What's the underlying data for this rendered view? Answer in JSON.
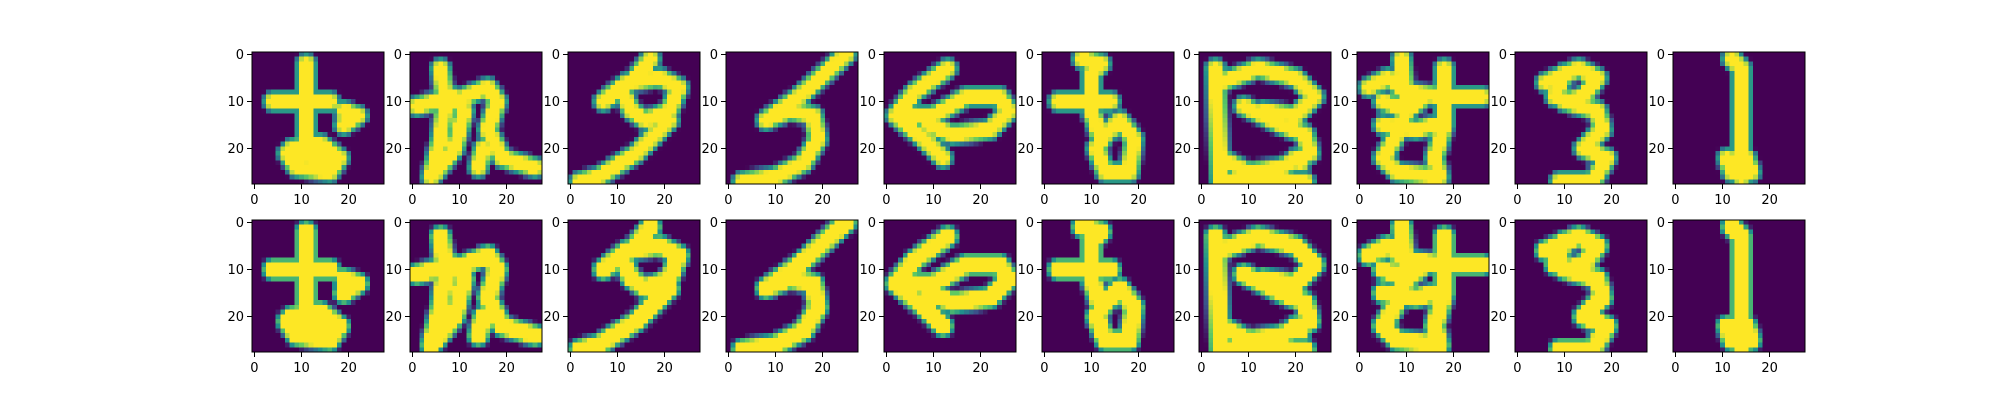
{
  "colors": {
    "background": "#440154",
    "mid": "#21918c",
    "foreground": "#fde725",
    "axis": "#000000"
  },
  "colormap": "viridis",
  "chart_data": {
    "type": "heatmap",
    "description_of_grid": "2 rows x 10 columns of 28x28 grayscale glyph images rendered with the viridis colormap; row 1 and row 2 depict the same ten glyphs",
    "image_shape": [
      28,
      28
    ],
    "rows": 2,
    "cols": 10,
    "x_ticks": [
      "0",
      "10",
      "20"
    ],
    "y_ticks": [
      "0",
      "10",
      "20"
    ],
    "xlim": [
      -0.5,
      27.5
    ],
    "ylim": [
      27.5,
      -0.5
    ],
    "glyphs": [
      {
        "name": "glyph-1",
        "strokes": [
          [
            [
              11,
              2
            ],
            [
              11,
              20
            ],
            [
              14,
              22
            ]
          ],
          [
            [
              4,
              10
            ],
            [
              16,
              10
            ]
          ],
          [
            [
              19,
              12
            ],
            [
              22,
              13
            ],
            [
              19,
              15
            ]
          ],
          [
            [
              8,
              20
            ],
            [
              14,
              19
            ],
            [
              18,
              22
            ],
            [
              16,
              25
            ],
            [
              9,
              24
            ],
            [
              7,
              21
            ],
            [
              8,
              20
            ]
          ],
          [
            [
              10,
              21
            ],
            [
              15,
              22
            ],
            [
              12,
              24
            ]
          ]
        ]
      },
      {
        "name": "glyph-2",
        "strokes": [
          [
            [
              4,
              26
            ],
            [
              6,
              18
            ],
            [
              7,
              10
            ],
            [
              6,
              3
            ]
          ],
          [
            [
              1,
              11
            ],
            [
              9,
              9
            ],
            [
              11,
              12
            ],
            [
              9,
              20
            ],
            [
              5,
              25
            ]
          ],
          [
            [
              11,
              9
            ],
            [
              16,
              7
            ],
            [
              18,
              10
            ],
            [
              16,
              16
            ],
            [
              19,
              22
            ],
            [
              26,
              24
            ]
          ],
          [
            [
              15,
              20
            ],
            [
              14,
              24
            ]
          ]
        ]
      },
      {
        "name": "glyph-3",
        "strokes": [
          [
            [
              17,
              1
            ],
            [
              13,
              6
            ]
          ],
          [
            [
              7,
              10
            ],
            [
              12,
              6
            ],
            [
              19,
              5
            ],
            [
              23,
              7
            ],
            [
              21,
              12
            ],
            [
              16,
              14
            ]
          ],
          [
            [
              11,
              8
            ],
            [
              13,
              12
            ],
            [
              16,
              14
            ]
          ],
          [
            [
              21,
              14
            ],
            [
              14,
              21
            ],
            [
              6,
              26
            ],
            [
              2,
              27
            ]
          ]
        ]
      },
      {
        "name": "glyph-4",
        "strokes": [
          [
            [
              25,
              0
            ],
            [
              15,
              9
            ],
            [
              8,
              14
            ]
          ],
          [
            [
              8,
              14
            ],
            [
              13,
              12
            ],
            [
              18,
              13
            ],
            [
              19,
              18
            ],
            [
              16,
              23
            ],
            [
              10,
              26
            ],
            [
              3,
              27
            ]
          ]
        ]
      },
      {
        "name": "glyph-5",
        "strokes": [
          [
            [
              13,
              3
            ],
            [
              6,
              8
            ],
            [
              2,
              13
            ],
            [
              8,
              18
            ],
            [
              12,
              22
            ]
          ],
          [
            [
              2,
              13
            ],
            [
              10,
              13
            ],
            [
              17,
              9
            ],
            [
              24,
              9
            ],
            [
              26,
              12
            ],
            [
              22,
              16
            ],
            [
              14,
              17
            ],
            [
              9,
              15
            ]
          ]
        ]
      },
      {
        "name": "glyph-6",
        "strokes": [
          [
            [
              8,
              1
            ],
            [
              12,
              2
            ],
            [
              10,
              4
            ],
            [
              10,
              12
            ],
            [
              12,
              18
            ]
          ],
          [
            [
              3,
              10
            ],
            [
              14,
              10
            ]
          ],
          [
            [
              12,
              18
            ],
            [
              16,
              14
            ],
            [
              19,
              18
            ],
            [
              18,
              25
            ],
            [
              13,
              25
            ],
            [
              11,
              20
            ],
            [
              13,
              17
            ]
          ]
        ]
      },
      {
        "name": "glyph-7",
        "strokes": [
          [
            [
              4,
              6
            ],
            [
              12,
              3
            ],
            [
              20,
              5
            ],
            [
              24,
              9
            ],
            [
              20,
              13
            ],
            [
              13,
              12
            ]
          ],
          [
            [
              3,
              3
            ],
            [
              4,
              27
            ],
            [
              22,
              27
            ]
          ],
          [
            [
              9,
              11
            ],
            [
              17,
              15
            ],
            [
              22,
              17
            ],
            [
              23,
              21
            ],
            [
              17,
              24
            ],
            [
              10,
              25
            ],
            [
              4,
              22
            ]
          ],
          [
            [
              20,
              22
            ],
            [
              21,
              23
            ]
          ]
        ]
      },
      {
        "name": "glyph-8",
        "strokes": [
          [
            [
              2,
              7
            ],
            [
              6,
              5
            ],
            [
              10,
              8
            ],
            [
              18,
              9
            ],
            [
              26,
              9
            ]
          ],
          [
            [
              9,
              1
            ],
            [
              10,
              12
            ],
            [
              8,
              17
            ],
            [
              5,
              22
            ],
            [
              8,
              25
            ],
            [
              17,
              26
            ]
          ],
          [
            [
              18,
              3
            ],
            [
              18,
              15
            ],
            [
              16,
              22
            ],
            [
              17,
              26
            ]
          ],
          [
            [
              5,
              10
            ],
            [
              10,
              12
            ],
            [
              14,
              9
            ]
          ],
          [
            [
              5,
              15
            ],
            [
              12,
              16
            ],
            [
              16,
              15
            ]
          ]
        ]
      },
      {
        "name": "glyph-9",
        "strokes": [
          [
            [
              6,
              6
            ],
            [
              13,
              3
            ],
            [
              17,
              5
            ],
            [
              14,
              9
            ],
            [
              10,
              10
            ]
          ],
          [
            [
              10,
              10
            ],
            [
              17,
              12
            ],
            [
              18,
              16
            ],
            [
              14,
              20
            ]
          ],
          [
            [
              14,
              20
            ],
            [
              19,
              22
            ],
            [
              16,
              27
            ],
            [
              9,
              27
            ]
          ],
          [
            [
              10,
              4
            ],
            [
              8,
              9
            ]
          ]
        ]
      },
      {
        "name": "glyph-10",
        "strokes": [
          [
            [
              12,
              1
            ],
            [
              14,
              3
            ],
            [
              14,
              15
            ],
            [
              14,
              26
            ]
          ],
          [
            [
              11,
              22
            ],
            [
              12,
              25
            ],
            [
              16,
              25
            ],
            [
              15,
              22
            ]
          ]
        ]
      }
    ]
  }
}
